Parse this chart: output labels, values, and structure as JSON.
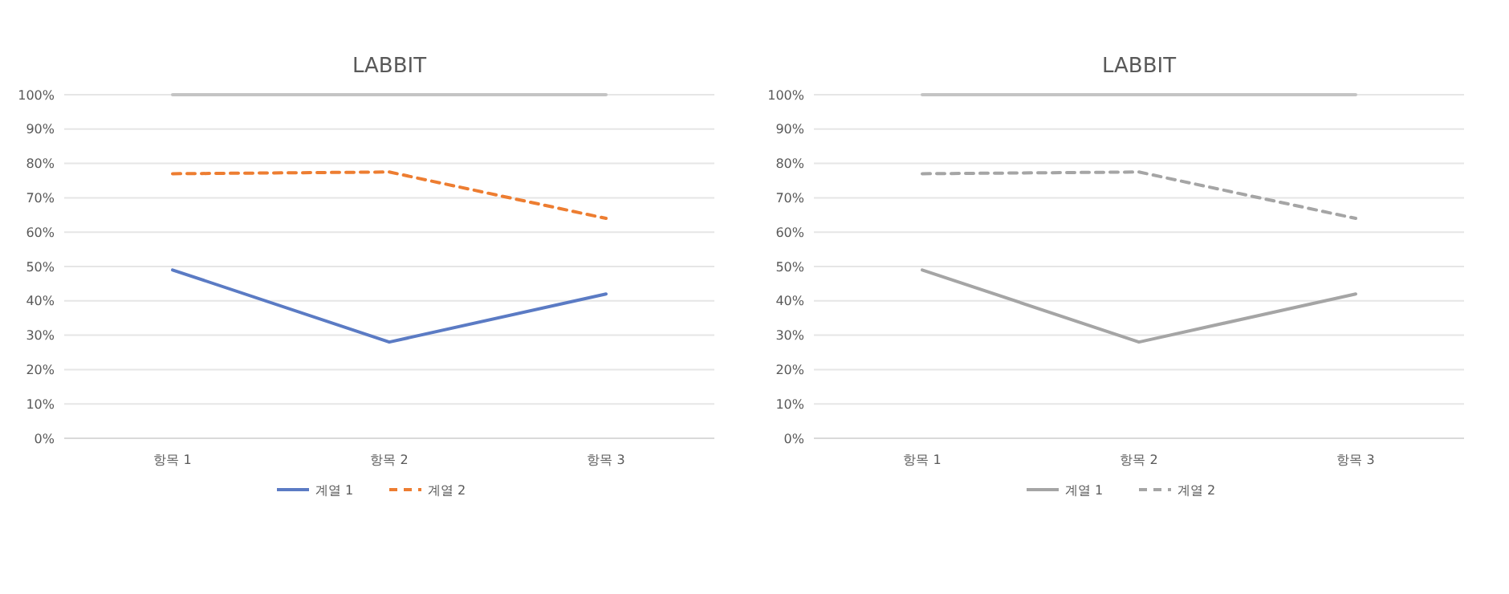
{
  "chart_data": [
    {
      "type": "line",
      "title": "LABBIT",
      "categories": [
        "항목 1",
        "항목 2",
        "항목 3"
      ],
      "ylim": [
        0,
        100
      ],
      "yticks": [
        {
          "value": 0,
          "label": "0%"
        },
        {
          "value": 10,
          "label": "10%"
        },
        {
          "value": 20,
          "label": "20%"
        },
        {
          "value": 30,
          "label": "30%"
        },
        {
          "value": 40,
          "label": "40%"
        },
        {
          "value": 50,
          "label": "50%"
        },
        {
          "value": 60,
          "label": "60%"
        },
        {
          "value": 70,
          "label": "70%"
        },
        {
          "value": 80,
          "label": "80%"
        },
        {
          "value": 90,
          "label": "90%"
        },
        {
          "value": 100,
          "label": "100%"
        }
      ],
      "grid": "y",
      "legend": "bottom",
      "marker": "none",
      "series": [
        {
          "name": "계열 1",
          "color": "#5b7bc4",
          "values": [
            49,
            28,
            42
          ],
          "line_style": "solid"
        },
        {
          "name": "계열 2",
          "color": "#ed7d31",
          "values": [
            77,
            77.5,
            64
          ],
          "line_style": "dashed"
        },
        {
          "color": "#c4c4c4",
          "values": [
            100,
            100,
            100
          ],
          "line_style": "solid"
        }
      ]
    },
    {
      "type": "line",
      "title": "LABBIT",
      "categories": [
        "항목 1",
        "항목 2",
        "항목 3"
      ],
      "ylim": [
        0,
        100
      ],
      "yticks": [
        {
          "value": 0,
          "label": "0%"
        },
        {
          "value": 10,
          "label": "10%"
        },
        {
          "value": 20,
          "label": "20%"
        },
        {
          "value": 30,
          "label": "30%"
        },
        {
          "value": 40,
          "label": "40%"
        },
        {
          "value": 50,
          "label": "50%"
        },
        {
          "value": 60,
          "label": "60%"
        },
        {
          "value": 70,
          "label": "70%"
        },
        {
          "value": 80,
          "label": "80%"
        },
        {
          "value": 90,
          "label": "90%"
        },
        {
          "value": 100,
          "label": "100%"
        }
      ],
      "grid": "y",
      "legend": "bottom",
      "marker": "none",
      "series": [
        {
          "name": "계열 1",
          "color": "#a5a5a5",
          "values": [
            49,
            28,
            42
          ],
          "line_style": "solid"
        },
        {
          "name": "계열 2",
          "color": "#a5a5a5",
          "values": [
            77,
            77.5,
            64
          ],
          "line_style": "dashed"
        },
        {
          "color": "#c4c4c4",
          "values": [
            100,
            100,
            100
          ],
          "line_style": "solid"
        }
      ]
    }
  ]
}
